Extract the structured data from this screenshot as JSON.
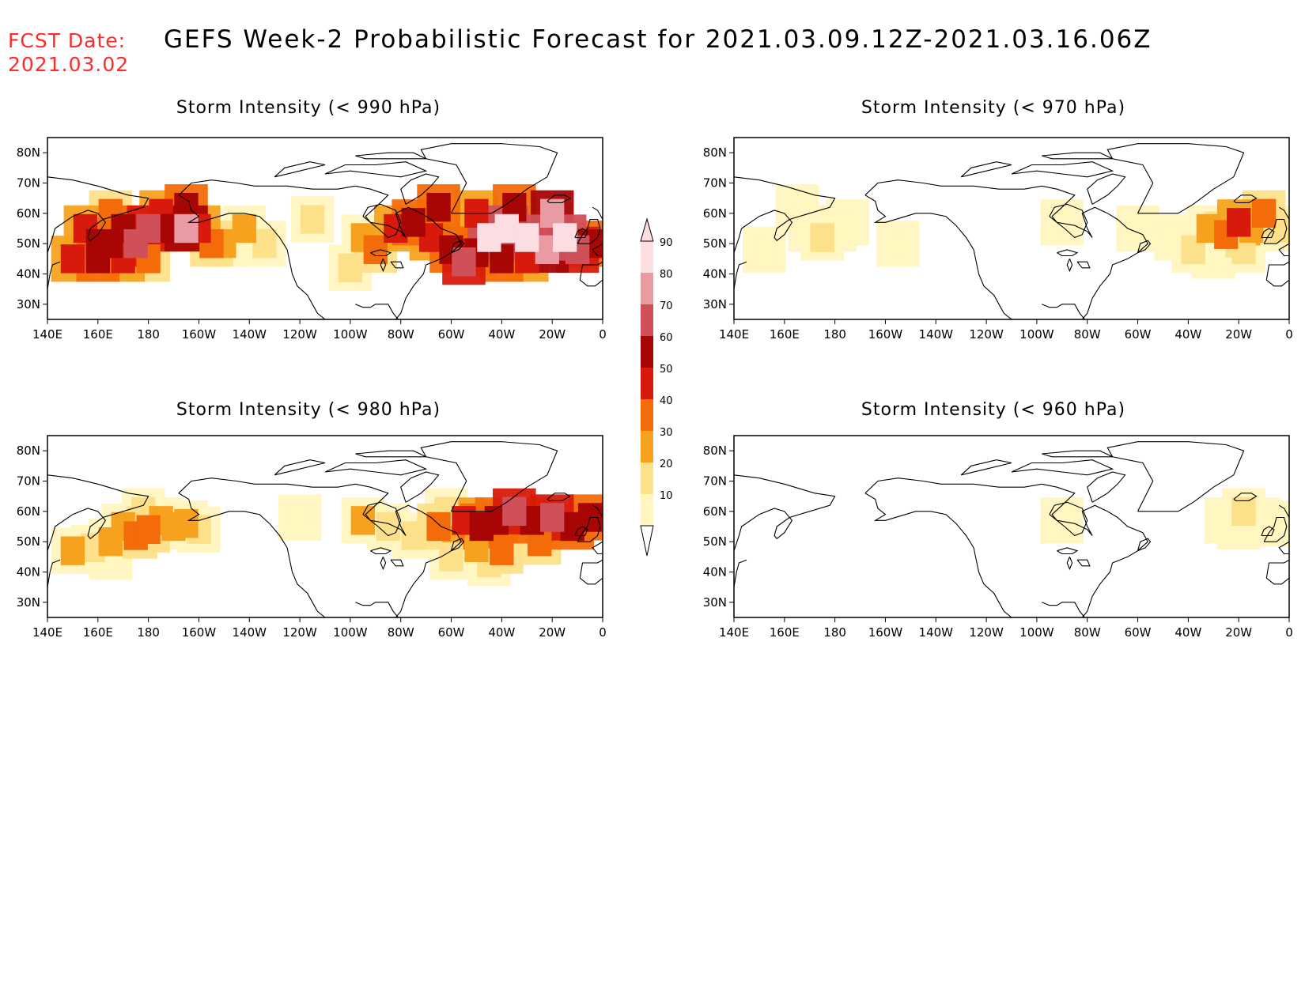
{
  "header": {
    "fcst_label": "FCST Date:",
    "fcst_date": "2021.03.02",
    "title": "GEFS Week-2 Probabilistic Forecast for 2021.03.09.12Z-2021.03.16.06Z"
  },
  "colors": {
    "text_red": "#ff2a2a",
    "10": "#fff6c0",
    "20": "#fde08a",
    "30": "#f7a21e",
    "40": "#f46b0a",
    "50": "#d81a0c",
    "60": "#a80505",
    "70": "#d0505a",
    "80": "#e99aa2",
    "90": "#fbdde2"
  },
  "colorbar": {
    "labels": [
      "10",
      "20",
      "30",
      "40",
      "50",
      "60",
      "70",
      "80",
      "90"
    ]
  },
  "axes": {
    "x_ticks": [
      "140E",
      "160E",
      "180",
      "160W",
      "140W",
      "120W",
      "100W",
      "80W",
      "60W",
      "40W",
      "20W",
      "0"
    ],
    "y_ticks": [
      "80N",
      "70N",
      "60N",
      "50N",
      "40N",
      "30N"
    ]
  },
  "panels": [
    {
      "id": "p990",
      "title": "Storm Intensity (< 990 hPa)"
    },
    {
      "id": "p970",
      "title": "Storm Intensity (< 970 hPa)"
    },
    {
      "id": "p980",
      "title": "Storm Intensity (< 980 hPa)"
    },
    {
      "id": "p960",
      "title": "Storm Intensity (< 960 hPa)"
    }
  ],
  "chart_data": [
    {
      "type": "heatmap",
      "title": "Storm Intensity (< 990 hPa)",
      "x_range_lon": [
        140,
        360
      ],
      "y_range_lat": [
        25,
        85
      ],
      "units": "probability %",
      "cells": [
        {
          "lon": 155,
          "lat": 55,
          "p": 50
        },
        {
          "lon": 160,
          "lat": 50,
          "p": 60
        },
        {
          "lon": 165,
          "lat": 50,
          "p": 60
        },
        {
          "lon": 170,
          "lat": 55,
          "p": 60
        },
        {
          "lon": 175,
          "lat": 50,
          "p": 70
        },
        {
          "lon": 180,
          "lat": 55,
          "p": 70
        },
        {
          "lon": 185,
          "lat": 55,
          "p": 60
        },
        {
          "lon": 190,
          "lat": 55,
          "p": 60
        },
        {
          "lon": 195,
          "lat": 55,
          "p": 80
        },
        {
          "lon": 200,
          "lat": 55,
          "p": 50
        },
        {
          "lon": 205,
          "lat": 50,
          "p": 40
        },
        {
          "lon": 210,
          "lat": 50,
          "p": 30
        },
        {
          "lon": 150,
          "lat": 45,
          "p": 50
        },
        {
          "lon": 160,
          "lat": 45,
          "p": 60
        },
        {
          "lon": 170,
          "lat": 45,
          "p": 50
        },
        {
          "lon": 180,
          "lat": 45,
          "p": 40
        },
        {
          "lon": 165,
          "lat": 60,
          "p": 40
        },
        {
          "lon": 185,
          "lat": 60,
          "p": 50
        },
        {
          "lon": 195,
          "lat": 62,
          "p": 60
        },
        {
          "lon": 218,
          "lat": 55,
          "p": 30
        },
        {
          "lon": 226,
          "lat": 50,
          "p": 20
        },
        {
          "lon": 245,
          "lat": 58,
          "p": 20
        },
        {
          "lon": 265,
          "lat": 52,
          "p": 30
        },
        {
          "lon": 270,
          "lat": 48,
          "p": 40
        },
        {
          "lon": 278,
          "lat": 55,
          "p": 50
        },
        {
          "lon": 285,
          "lat": 57,
          "p": 60
        },
        {
          "lon": 292,
          "lat": 52,
          "p": 50
        },
        {
          "lon": 300,
          "lat": 48,
          "p": 60
        },
        {
          "lon": 305,
          "lat": 44,
          "p": 70
        },
        {
          "lon": 310,
          "lat": 47,
          "p": 60
        },
        {
          "lon": 315,
          "lat": 52,
          "p": 90
        },
        {
          "lon": 322,
          "lat": 55,
          "p": 90
        },
        {
          "lon": 330,
          "lat": 52,
          "p": 90
        },
        {
          "lon": 338,
          "lat": 48,
          "p": 80
        },
        {
          "lon": 345,
          "lat": 52,
          "p": 90
        },
        {
          "lon": 350,
          "lat": 48,
          "p": 70
        },
        {
          "lon": 320,
          "lat": 45,
          "p": 60
        },
        {
          "lon": 330,
          "lat": 45,
          "p": 50
        },
        {
          "lon": 295,
          "lat": 62,
          "p": 60
        },
        {
          "lon": 310,
          "lat": 60,
          "p": 50
        },
        {
          "lon": 325,
          "lat": 62,
          "p": 60
        },
        {
          "lon": 340,
          "lat": 60,
          "p": 80
        },
        {
          "lon": 355,
          "lat": 50,
          "p": 60
        },
        {
          "lon": 260,
          "lat": 42,
          "p": 20
        }
      ]
    },
    {
      "type": "heatmap",
      "title": "Storm Intensity (< 970 hPa)",
      "x_range_lon": [
        140,
        360
      ],
      "y_range_lat": [
        25,
        85
      ],
      "units": "probability %",
      "cells": [
        {
          "lon": 170,
          "lat": 55,
          "p": 10
        },
        {
          "lon": 175,
          "lat": 52,
          "p": 20
        },
        {
          "lon": 180,
          "lat": 55,
          "p": 10
        },
        {
          "lon": 185,
          "lat": 57,
          "p": 10
        },
        {
          "lon": 165,
          "lat": 62,
          "p": 10
        },
        {
          "lon": 152,
          "lat": 48,
          "p": 10
        },
        {
          "lon": 205,
          "lat": 50,
          "p": 10
        },
        {
          "lon": 270,
          "lat": 57,
          "p": 10
        },
        {
          "lon": 300,
          "lat": 55,
          "p": 10
        },
        {
          "lon": 315,
          "lat": 52,
          "p": 10
        },
        {
          "lon": 322,
          "lat": 48,
          "p": 20
        },
        {
          "lon": 328,
          "lat": 55,
          "p": 30
        },
        {
          "lon": 335,
          "lat": 53,
          "p": 40
        },
        {
          "lon": 340,
          "lat": 57,
          "p": 50
        },
        {
          "lon": 345,
          "lat": 55,
          "p": 30
        },
        {
          "lon": 350,
          "lat": 60,
          "p": 40
        },
        {
          "lon": 355,
          "lat": 55,
          "p": 20
        },
        {
          "lon": 330,
          "lat": 46,
          "p": 10
        },
        {
          "lon": 342,
          "lat": 48,
          "p": 20
        }
      ]
    },
    {
      "type": "heatmap",
      "title": "Storm Intensity (< 980 hPa)",
      "x_range_lon": [
        140,
        360
      ],
      "y_range_lat": [
        25,
        85
      ],
      "units": "probability %",
      "cells": [
        {
          "lon": 150,
          "lat": 47,
          "p": 30
        },
        {
          "lon": 158,
          "lat": 48,
          "p": 20
        },
        {
          "lon": 165,
          "lat": 50,
          "p": 30
        },
        {
          "lon": 170,
          "lat": 55,
          "p": 30
        },
        {
          "lon": 175,
          "lat": 52,
          "p": 40
        },
        {
          "lon": 180,
          "lat": 54,
          "p": 40
        },
        {
          "lon": 185,
          "lat": 57,
          "p": 30
        },
        {
          "lon": 190,
          "lat": 55,
          "p": 30
        },
        {
          "lon": 195,
          "lat": 56,
          "p": 30
        },
        {
          "lon": 200,
          "lat": 54,
          "p": 20
        },
        {
          "lon": 178,
          "lat": 60,
          "p": 20
        },
        {
          "lon": 165,
          "lat": 45,
          "p": 10
        },
        {
          "lon": 240,
          "lat": 58,
          "p": 10
        },
        {
          "lon": 265,
          "lat": 57,
          "p": 30
        },
        {
          "lon": 275,
          "lat": 55,
          "p": 20
        },
        {
          "lon": 285,
          "lat": 52,
          "p": 20
        },
        {
          "lon": 295,
          "lat": 55,
          "p": 40
        },
        {
          "lon": 305,
          "lat": 57,
          "p": 50
        },
        {
          "lon": 312,
          "lat": 55,
          "p": 60
        },
        {
          "lon": 318,
          "lat": 57,
          "p": 60
        },
        {
          "lon": 325,
          "lat": 60,
          "p": 70
        },
        {
          "lon": 332,
          "lat": 57,
          "p": 60
        },
        {
          "lon": 340,
          "lat": 58,
          "p": 70
        },
        {
          "lon": 348,
          "lat": 55,
          "p": 60
        },
        {
          "lon": 355,
          "lat": 58,
          "p": 60
        },
        {
          "lon": 310,
          "lat": 48,
          "p": 30
        },
        {
          "lon": 320,
          "lat": 47,
          "p": 40
        },
        {
          "lon": 300,
          "lat": 45,
          "p": 20
        },
        {
          "lon": 315,
          "lat": 43,
          "p": 20
        },
        {
          "lon": 335,
          "lat": 50,
          "p": 40
        },
        {
          "lon": 298,
          "lat": 60,
          "p": 20
        }
      ]
    },
    {
      "type": "heatmap",
      "title": "Storm Intensity (< 960 hPa)",
      "x_range_lon": [
        140,
        360
      ],
      "y_range_lat": [
        25,
        85
      ],
      "units": "probability %",
      "cells": [
        {
          "lon": 335,
          "lat": 57,
          "p": 10
        },
        {
          "lon": 342,
          "lat": 60,
          "p": 20
        },
        {
          "lon": 348,
          "lat": 57,
          "p": 10
        },
        {
          "lon": 340,
          "lat": 55,
          "p": 10
        },
        {
          "lon": 355,
          "lat": 56,
          "p": 10
        },
        {
          "lon": 270,
          "lat": 57,
          "p": 10
        }
      ]
    }
  ]
}
